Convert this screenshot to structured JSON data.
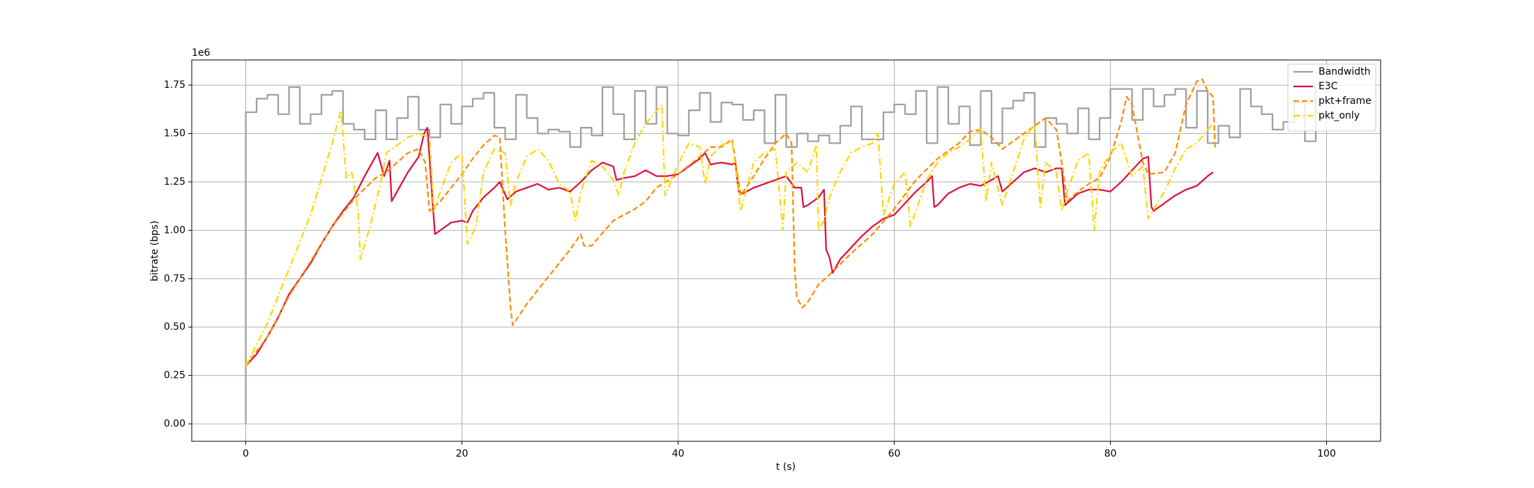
{
  "chart_data": {
    "type": "line",
    "xlabel": "t (s)",
    "ylabel": "bitrate (bps)",
    "y_offset_label": "1e6",
    "xlim": [
      -5,
      105
    ],
    "ylim": [
      -0.09,
      1.88
    ],
    "xticks": [
      0,
      20,
      40,
      60,
      80,
      100
    ],
    "yticks": [
      {
        "value": 0,
        "label": "0.00"
      },
      {
        "value": 0.25,
        "label": "0.25"
      },
      {
        "value": 0.5,
        "label": "0.50"
      },
      {
        "value": 0.75,
        "label": "0.75"
      },
      {
        "value": 1.0,
        "label": "1.00"
      },
      {
        "value": 1.25,
        "label": "1.25"
      },
      {
        "value": 1.5,
        "label": "1.50"
      },
      {
        "value": 1.75,
        "label": "1.75"
      }
    ],
    "grid": true,
    "legend": "upper right",
    "series": [
      {
        "name": "Bandwidth",
        "color": "#a0a0a0",
        "linestyle": "solid",
        "drawstyle": "steps-post",
        "x": [
          0,
          0,
          1,
          2,
          3,
          4,
          5,
          6,
          7,
          8,
          9,
          10,
          11,
          12,
          13,
          14,
          15,
          16,
          17,
          18,
          19,
          20,
          21,
          22,
          23,
          24,
          25,
          26,
          27,
          28,
          29,
          30,
          31,
          32,
          33,
          34,
          35,
          36,
          37,
          38,
          39,
          40,
          41,
          42,
          43,
          44,
          45,
          46,
          47,
          48,
          49,
          50,
          51,
          52,
          53,
          54,
          55,
          56,
          57,
          58,
          59,
          60,
          61,
          62,
          63,
          64,
          65,
          66,
          67,
          68,
          69,
          70,
          71,
          72,
          73,
          74,
          75,
          76,
          77,
          78,
          79,
          80,
          81,
          82,
          83,
          84,
          85,
          86,
          87,
          88,
          89,
          90,
          91,
          92,
          93,
          94,
          95,
          96,
          97,
          98,
          99
        ],
        "values": [
          0,
          1.61,
          1.68,
          1.7,
          1.6,
          1.74,
          1.55,
          1.6,
          1.7,
          1.72,
          1.55,
          1.52,
          1.47,
          1.62,
          1.47,
          1.58,
          1.69,
          1.52,
          1.48,
          1.65,
          1.55,
          1.64,
          1.68,
          1.71,
          1.53,
          1.47,
          1.7,
          1.58,
          1.5,
          1.52,
          1.51,
          1.43,
          1.53,
          1.49,
          1.74,
          1.6,
          1.47,
          1.72,
          1.55,
          1.74,
          1.5,
          1.49,
          1.62,
          1.71,
          1.56,
          1.66,
          1.65,
          1.57,
          1.62,
          1.45,
          1.7,
          1.43,
          1.5,
          1.46,
          1.49,
          1.45,
          1.54,
          1.64,
          1.47,
          1.47,
          1.61,
          1.65,
          1.6,
          1.72,
          1.45,
          1.74,
          1.55,
          1.64,
          1.44,
          1.72,
          1.45,
          1.63,
          1.67,
          1.71,
          1.43,
          1.58,
          1.55,
          1.5,
          1.63,
          1.47,
          1.58,
          1.73,
          1.73,
          1.57,
          1.73,
          1.64,
          1.7,
          1.73,
          1.53,
          1.72,
          1.45,
          1.54,
          1.48,
          1.73,
          1.64,
          1.6,
          1.52,
          1.56,
          1.66,
          1.46,
          1.74
        ]
      },
      {
        "name": "E3C",
        "color": "#dc143c",
        "linestyle": "solid",
        "drawstyle": "default",
        "x": [
          0,
          1,
          2,
          3,
          4,
          5,
          6,
          7,
          8,
          9,
          10,
          11,
          12,
          12.2,
          12.8,
          13.3,
          13.5,
          14,
          15,
          16,
          16.5,
          16.8,
          17.5,
          18,
          19,
          20,
          20.5,
          21,
          22,
          23,
          23.5,
          24.2,
          25,
          26,
          27,
          28,
          29,
          30,
          31,
          32,
          33,
          34,
          34.3,
          35,
          36,
          37,
          38,
          39,
          40,
          41,
          42,
          42.5,
          43,
          44,
          45,
          45.3,
          45.6,
          46,
          47,
          48,
          49,
          50,
          50.8,
          51.4,
          51.6,
          52,
          53,
          53.5,
          53.7,
          54,
          54.3,
          55,
          56,
          57,
          58,
          59,
          60,
          61,
          62,
          63,
          63.5,
          63.7,
          64,
          65,
          66,
          67,
          68,
          69,
          69.6,
          70,
          71,
          72,
          73,
          74,
          75,
          75.5,
          75.8,
          77,
          78,
          79,
          80,
          81,
          82,
          83,
          83.5,
          83.8,
          84,
          85,
          86,
          87,
          88,
          89,
          89.5
        ],
        "values": [
          0.3,
          0.36,
          0.45,
          0.55,
          0.67,
          0.75,
          0.83,
          0.93,
          1.02,
          1.1,
          1.17,
          1.28,
          1.38,
          1.4,
          1.28,
          1.36,
          1.15,
          1.2,
          1.3,
          1.38,
          1.5,
          1.53,
          0.98,
          1.0,
          1.04,
          1.05,
          1.04,
          1.1,
          1.17,
          1.22,
          1.25,
          1.16,
          1.2,
          1.22,
          1.24,
          1.21,
          1.22,
          1.2,
          1.25,
          1.31,
          1.35,
          1.33,
          1.26,
          1.27,
          1.28,
          1.31,
          1.28,
          1.28,
          1.29,
          1.33,
          1.37,
          1.4,
          1.34,
          1.35,
          1.34,
          1.35,
          1.2,
          1.19,
          1.22,
          1.24,
          1.26,
          1.28,
          1.22,
          1.22,
          1.12,
          1.13,
          1.17,
          1.21,
          0.9,
          0.86,
          0.78,
          0.85,
          0.91,
          0.97,
          1.02,
          1.06,
          1.08,
          1.14,
          1.2,
          1.25,
          1.28,
          1.12,
          1.13,
          1.19,
          1.22,
          1.24,
          1.23,
          1.26,
          1.28,
          1.2,
          1.25,
          1.3,
          1.32,
          1.3,
          1.32,
          1.32,
          1.13,
          1.19,
          1.21,
          1.21,
          1.2,
          1.25,
          1.31,
          1.37,
          1.38,
          1.12,
          1.1,
          1.14,
          1.18,
          1.21,
          1.23,
          1.28,
          1.3
        ]
      },
      {
        "name": "pkt+frame",
        "color": "#ff8c00",
        "linestyle": "dashed",
        "drawstyle": "default",
        "x": [
          0,
          2,
          4,
          6,
          8,
          10,
          12,
          13,
          14,
          15,
          16,
          16.6,
          17,
          18,
          19,
          20,
          21,
          22,
          23,
          23.5,
          24,
          24.5,
          24.7,
          26,
          28,
          30,
          31,
          31.3,
          32,
          34,
          36,
          37,
          38,
          40,
          42,
          43,
          44,
          45,
          45.4,
          45.8,
          47,
          48,
          49,
          50,
          50.5,
          50.8,
          51,
          51.5,
          52,
          53,
          54,
          56,
          58,
          60,
          62,
          64,
          66,
          67,
          68,
          69,
          70,
          72,
          74,
          75,
          75.5,
          76,
          77,
          78,
          79,
          80,
          81,
          81.5,
          82,
          82.5,
          83,
          83.5,
          85,
          86,
          87,
          88,
          88.5,
          89,
          89.5,
          89.7
        ],
        "values": [
          0.3,
          0.45,
          0.66,
          0.84,
          1.02,
          1.16,
          1.27,
          1.3,
          1.35,
          1.4,
          1.42,
          1.35,
          1.1,
          1.15,
          1.22,
          1.29,
          1.37,
          1.44,
          1.49,
          1.48,
          1.0,
          0.6,
          0.51,
          0.62,
          0.76,
          0.9,
          0.98,
          0.92,
          0.92,
          1.05,
          1.11,
          1.15,
          1.22,
          1.29,
          1.38,
          1.43,
          1.43,
          1.47,
          1.32,
          1.18,
          1.28,
          1.37,
          1.45,
          1.5,
          1.45,
          0.78,
          0.65,
          0.6,
          0.63,
          0.72,
          0.77,
          0.88,
          0.98,
          1.11,
          1.26,
          1.37,
          1.45,
          1.51,
          1.52,
          1.48,
          1.42,
          1.5,
          1.58,
          1.52,
          1.35,
          1.15,
          1.2,
          1.24,
          1.27,
          1.38,
          1.56,
          1.69,
          1.65,
          1.5,
          1.35,
          1.29,
          1.3,
          1.4,
          1.65,
          1.77,
          1.78,
          1.72,
          1.69,
          1.42
        ]
      },
      {
        "name": "pkt_only",
        "color": "#ffd700",
        "linestyle": "dashdot",
        "drawstyle": "default",
        "x": [
          0,
          2,
          4,
          6,
          8,
          8.8,
          9.3,
          9.8,
          10.4,
          10.6,
          11.5,
          12.5,
          13,
          14,
          15,
          16,
          17,
          17.4,
          18,
          19,
          20,
          20.5,
          21.3,
          22,
          23,
          24,
          24.5,
          25,
          26,
          27,
          28,
          29,
          30,
          30.5,
          31,
          32,
          33,
          34,
          34.5,
          35,
          36,
          37,
          38.5,
          38.8,
          40,
          41,
          42,
          42.5,
          43,
          44,
          45,
          45.8,
          46.5,
          47,
          48,
          49,
          49.7,
          50,
          51,
          52,
          52.8,
          53,
          53.5,
          54,
          55,
          56,
          57,
          58,
          58.5,
          59,
          60,
          61,
          61.5,
          62,
          63,
          64,
          65,
          66,
          67,
          68,
          68.5,
          69,
          70,
          71,
          72,
          73,
          73.5,
          74,
          75,
          75.5,
          76,
          77,
          78,
          78.5,
          79,
          80,
          81,
          82,
          83,
          83.5,
          85,
          86,
          87,
          88,
          89,
          89.5
        ],
        "values": [
          0.3,
          0.52,
          0.8,
          1.08,
          1.45,
          1.62,
          1.27,
          1.3,
          1.1,
          0.85,
          1.02,
          1.25,
          1.4,
          1.44,
          1.48,
          1.5,
          1.48,
          1.1,
          1.2,
          1.35,
          1.4,
          0.93,
          1.02,
          1.3,
          1.42,
          1.4,
          1.13,
          1.25,
          1.38,
          1.42,
          1.36,
          1.24,
          1.2,
          1.05,
          1.2,
          1.36,
          1.33,
          1.26,
          1.18,
          1.3,
          1.45,
          1.55,
          1.65,
          1.18,
          1.34,
          1.45,
          1.43,
          1.24,
          1.38,
          1.44,
          1.46,
          1.1,
          1.25,
          1.35,
          1.4,
          1.42,
          1.0,
          1.3,
          1.35,
          1.3,
          1.44,
          1.0,
          1.05,
          1.17,
          1.3,
          1.4,
          1.43,
          1.45,
          1.5,
          1.08,
          1.24,
          1.3,
          1.02,
          1.1,
          1.26,
          1.35,
          1.4,
          1.43,
          1.47,
          1.52,
          1.15,
          1.35,
          1.13,
          1.3,
          1.47,
          1.55,
          1.12,
          1.35,
          1.3,
          1.1,
          1.2,
          1.36,
          1.4,
          1.0,
          1.3,
          1.4,
          1.45,
          1.28,
          1.33,
          1.06,
          1.2,
          1.32,
          1.42,
          1.45,
          1.52,
          1.55
        ]
      }
    ]
  }
}
